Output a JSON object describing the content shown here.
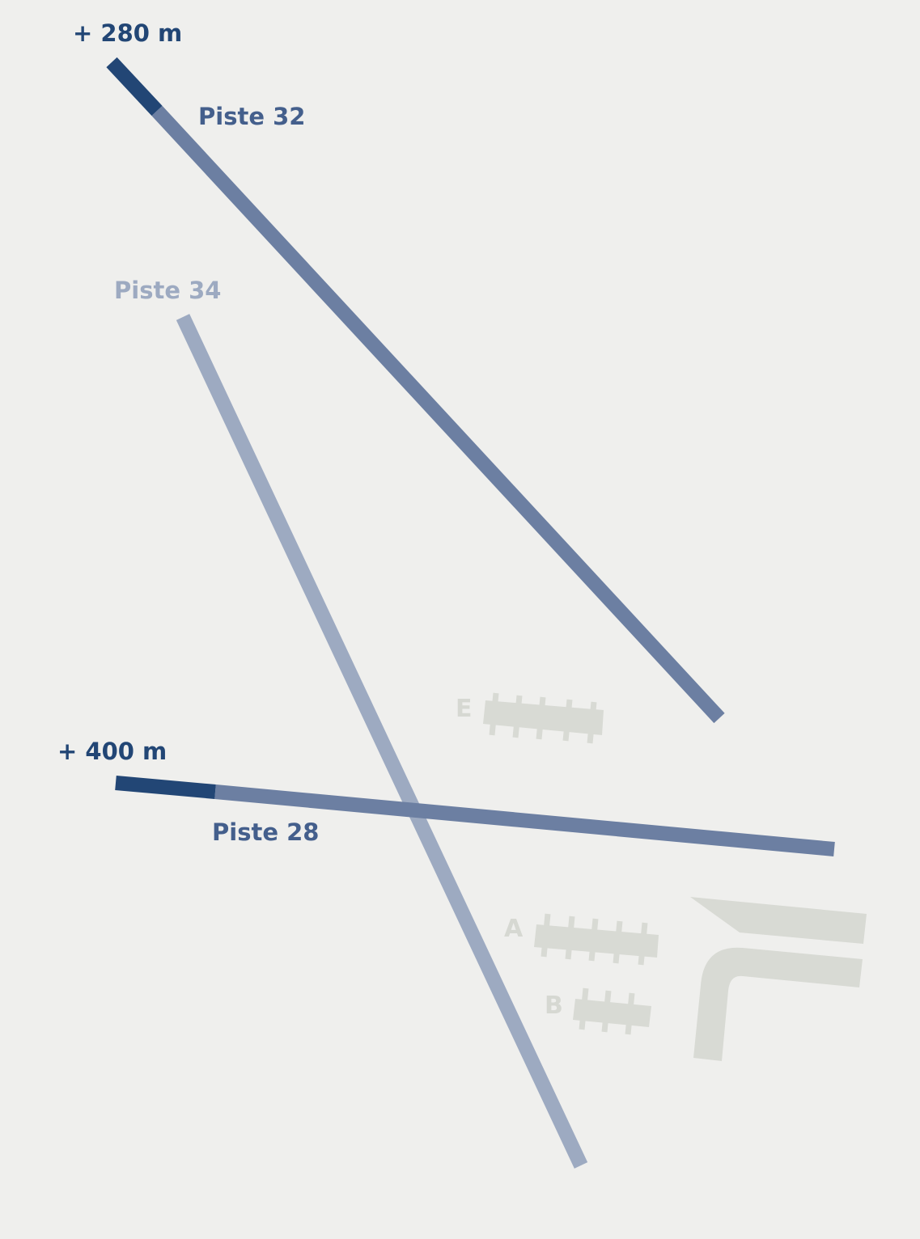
{
  "colors": {
    "background": "#efefed",
    "extension": "#224675",
    "runway_active": "#6c7fa2",
    "runway_inactive": "#9daac1",
    "terminal": "#d8dad4",
    "terminal_label": "#d6d8d2"
  },
  "runways": {
    "piste_32": {
      "label": "Piste 32",
      "extension_label": "+ 280 m"
    },
    "piste_34": {
      "label": "Piste 34"
    },
    "piste_28": {
      "label": "Piste 28",
      "extension_label": "+ 400 m"
    }
  },
  "terminals": {
    "e": {
      "label": "E"
    },
    "a": {
      "label": "A"
    },
    "b": {
      "label": "B"
    }
  }
}
